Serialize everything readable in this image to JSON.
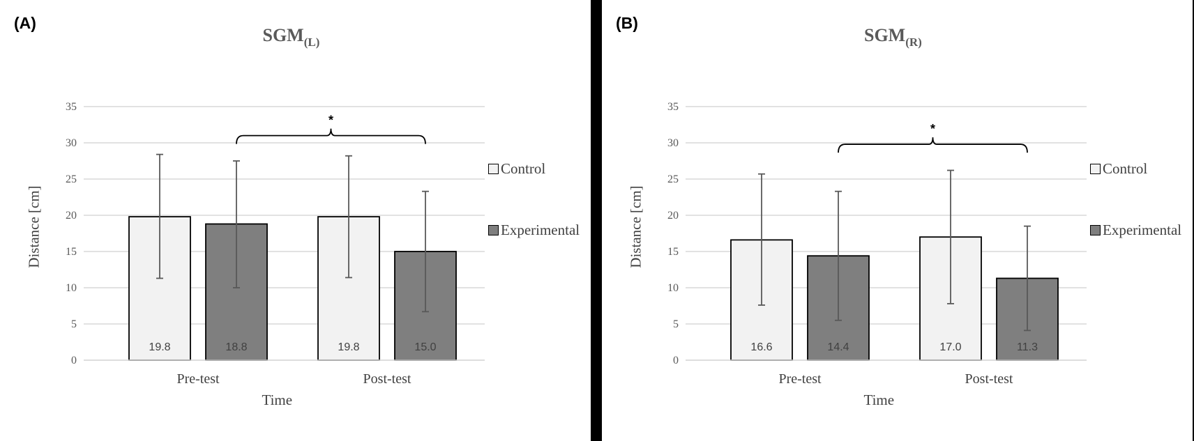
{
  "colors": {
    "control": "#f2f2f2",
    "experimental": "#7f7f7f",
    "grid": "#d9d9d9",
    "error": "#595959"
  },
  "chart_data": [
    {
      "type": "bar",
      "panel_label": "(A)",
      "title": "SGM",
      "title_sub": "(L)",
      "xlabel": "Time",
      "ylabel": "Distance [cm]",
      "ylim": [
        0,
        35
      ],
      "yticks": [
        0,
        5,
        10,
        15,
        20,
        25,
        30,
        35
      ],
      "grid": true,
      "legend_position": "right",
      "categories": [
        "Pre-test",
        "Post-test"
      ],
      "series": [
        {
          "name": "Control",
          "values": [
            19.8,
            19.8
          ],
          "labels": [
            "19.8",
            "19.8"
          ],
          "error_low": [
            11.3,
            11.4
          ],
          "error_high": [
            28.4,
            28.2
          ]
        },
        {
          "name": "Experimental",
          "values": [
            18.8,
            15.0
          ],
          "labels": [
            "18.8",
            "15.0"
          ],
          "error_low": [
            10.0,
            6.7
          ],
          "error_high": [
            27.5,
            23.3
          ]
        }
      ],
      "annotation": {
        "text": "*",
        "from": "Pre-test Experimental",
        "to": "Post-test Experimental",
        "level": 31
      }
    },
    {
      "type": "bar",
      "panel_label": "(B)",
      "title": "SGM",
      "title_sub": "(R)",
      "xlabel": "Time",
      "ylabel": "Distance [cm]",
      "ylim": [
        0,
        35
      ],
      "yticks": [
        0,
        5,
        10,
        15,
        20,
        25,
        30,
        35
      ],
      "grid": true,
      "legend_position": "right",
      "categories": [
        "Pre-test",
        "Post-test"
      ],
      "series": [
        {
          "name": "Control",
          "values": [
            16.6,
            17.0
          ],
          "labels": [
            "16.6",
            "17.0"
          ],
          "error_low": [
            7.6,
            7.8
          ],
          "error_high": [
            25.7,
            26.2
          ]
        },
        {
          "name": "Experimental",
          "values": [
            14.4,
            11.3
          ],
          "labels": [
            "14.4",
            "11.3"
          ],
          "error_low": [
            5.5,
            4.1
          ],
          "error_high": [
            23.3,
            18.5
          ]
        }
      ],
      "annotation": {
        "text": "*",
        "from": "Pre-test Experimental",
        "to": "Post-test Experimental",
        "level": 29.8
      }
    }
  ]
}
